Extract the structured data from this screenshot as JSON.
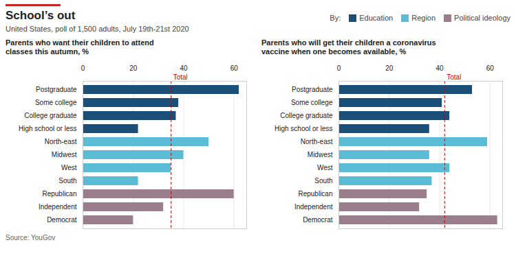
{
  "title": "School’s out",
  "subtitle": "United States, poll of 1,500 adults, July 19th-21st 2020",
  "source": "Source: YouGov",
  "legend_title": "By:",
  "chart_data": [
    {
      "type": "bar",
      "orientation": "horizontal",
      "title": "Parents who want their children to attend\nclasses this autumn, %",
      "categories": [
        "Postgraduate",
        "Some college",
        "College graduate",
        "High school or less",
        "North-east",
        "Midwest",
        "West",
        "South",
        "Republican",
        "Independent",
        "Democrat"
      ],
      "series": [
        {
          "name": "Education",
          "color": "#1a4f7a",
          "values": [
            62,
            38,
            37,
            22,
            null,
            null,
            null,
            null,
            null,
            null,
            null
          ]
        },
        {
          "name": "Region",
          "color": "#5bbcd6",
          "values": [
            null,
            null,
            null,
            null,
            50,
            40,
            35,
            22,
            null,
            null,
            null
          ]
        },
        {
          "name": "Political ideology",
          "color": "#9b7e8c",
          "values": [
            null,
            null,
            null,
            null,
            null,
            null,
            null,
            null,
            60,
            32,
            20
          ]
        }
      ],
      "xlim": [
        0,
        65
      ],
      "xticks": [
        0,
        20,
        40,
        60
      ],
      "grid": true,
      "annotations": [
        {
          "text": "Total",
          "x": 35,
          "color": "#cc0000"
        }
      ]
    },
    {
      "type": "bar",
      "orientation": "horizontal",
      "title": "Parents who will get their children a coronavirus\nvaccine when one becomes available, %",
      "categories": [
        "Postgraduate",
        "Some college",
        "College graduate",
        "High school or less",
        "North-east",
        "Midwest",
        "West",
        "South",
        "Republican",
        "Independent",
        "Democrat"
      ],
      "series": [
        {
          "name": "Education",
          "color": "#1a4f7a",
          "values": [
            53,
            41,
            44,
            36,
            null,
            null,
            null,
            null,
            null,
            null,
            null
          ]
        },
        {
          "name": "Region",
          "color": "#5bbcd6",
          "values": [
            null,
            null,
            null,
            null,
            59,
            36,
            44,
            37,
            null,
            null,
            null
          ]
        },
        {
          "name": "Political ideology",
          "color": "#9b7e8c",
          "values": [
            null,
            null,
            null,
            null,
            null,
            null,
            null,
            null,
            35,
            32,
            63
          ]
        }
      ],
      "xlim": [
        0,
        65
      ],
      "xticks": [
        0,
        20,
        40,
        60
      ],
      "grid": true,
      "annotations": [
        {
          "text": "Total",
          "x": 42,
          "color": "#cc0000"
        }
      ]
    }
  ]
}
